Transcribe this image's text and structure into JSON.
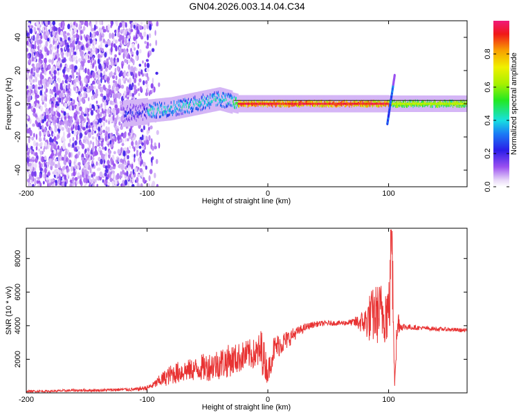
{
  "title": "GN04.2026.003.14.04.C34",
  "chart_data": [
    {
      "type": "heatmap",
      "title": "GN04.2026.003.14.04.C34",
      "xlabel": "Height of straight line (km)",
      "ylabel": "Frequency (Hz)",
      "xlim": [
        -200,
        165
      ],
      "ylim": [
        -50,
        50
      ],
      "x_ticks": [
        -200,
        -100,
        0,
        100
      ],
      "x_tick_labels": [
        "-200",
        "-100",
        "0",
        "100"
      ],
      "y_ticks": [
        -40,
        -20,
        0,
        20,
        40
      ],
      "y_tick_labels": [
        "-40",
        "-20",
        "0",
        "20",
        "40"
      ],
      "colorbar": {
        "label": "Normalized spectral amplitude",
        "range": [
          0,
          1
        ],
        "ticks": [
          0.0,
          0.2,
          0.4,
          0.6,
          0.8
        ],
        "tick_labels": [
          "0.0",
          "0.2",
          "0.4",
          "0.6",
          "0.8"
        ]
      },
      "features": {
        "noise_region_x": [
          -200,
          -95
        ],
        "signal_start_x": -120,
        "signal_center_freq": [
          [
            -120,
            -6
          ],
          [
            -80,
            -3
          ],
          [
            -40,
            3
          ],
          [
            -25,
            0
          ],
          [
            0,
            0
          ],
          [
            165,
            0
          ]
        ],
        "strong_band_x": [
          -25,
          100
        ],
        "spike_x": 102,
        "spike_freq_range": [
          -12,
          17
        ]
      }
    },
    {
      "type": "line",
      "xlabel": "Height of straight line (km)",
      "ylabel": "SNR (10 * v/v)",
      "xlim": [
        -200,
        165
      ],
      "ylim": [
        0,
        9800
      ],
      "x_ticks": [
        -200,
        -100,
        0,
        100
      ],
      "x_tick_labels": [
        "-200",
        "-100",
        "0",
        "100"
      ],
      "y_ticks": [
        2000,
        4000,
        6000,
        8000
      ],
      "y_tick_labels": [
        "2000",
        "4000",
        "6000",
        "8000"
      ],
      "series": [
        {
          "name": "SNR",
          "color": "#e83232",
          "x": [
            -200,
            -180,
            -160,
            -140,
            -120,
            -110,
            -100,
            -95,
            -90,
            -85,
            -80,
            -75,
            -70,
            -65,
            -60,
            -55,
            -50,
            -45,
            -40,
            -35,
            -30,
            -25,
            -20,
            -15,
            -10,
            -5,
            0,
            5,
            10,
            15,
            20,
            25,
            30,
            35,
            40,
            50,
            60,
            70,
            80,
            85,
            90,
            95,
            100,
            103,
            105,
            108,
            110,
            120,
            130,
            140,
            150,
            165
          ],
          "values": [
            100,
            100,
            150,
            150,
            200,
            200,
            300,
            450,
            700,
            900,
            1100,
            1200,
            1300,
            1350,
            1400,
            1500,
            1550,
            1650,
            1750,
            1850,
            1950,
            2050,
            2200,
            2300,
            2300,
            2500,
            1200,
            2600,
            2900,
            3100,
            3400,
            3650,
            3850,
            4000,
            4100,
            4150,
            4150,
            4200,
            4200,
            4500,
            4700,
            4800,
            4900,
            7500,
            1500,
            4300,
            3950,
            3900,
            3850,
            3800,
            3780,
            3700
          ],
          "fluctuation_amplitude": [
            60,
            60,
            80,
            80,
            100,
            100,
            150,
            200,
            350,
            500,
            600,
            650,
            700,
            650,
            700,
            800,
            850,
            900,
            950,
            1000,
            950,
            900,
            900,
            900,
            900,
            1400,
            700,
            800,
            700,
            600,
            450,
            300,
            250,
            200,
            180,
            150,
            150,
            200,
            800,
            1600,
            1800,
            1900,
            2000,
            2500,
            1500,
            800,
            250,
            150,
            120,
            120,
            120,
            120
          ]
        }
      ],
      "peak": {
        "x": 102,
        "value": 9700
      }
    }
  ]
}
